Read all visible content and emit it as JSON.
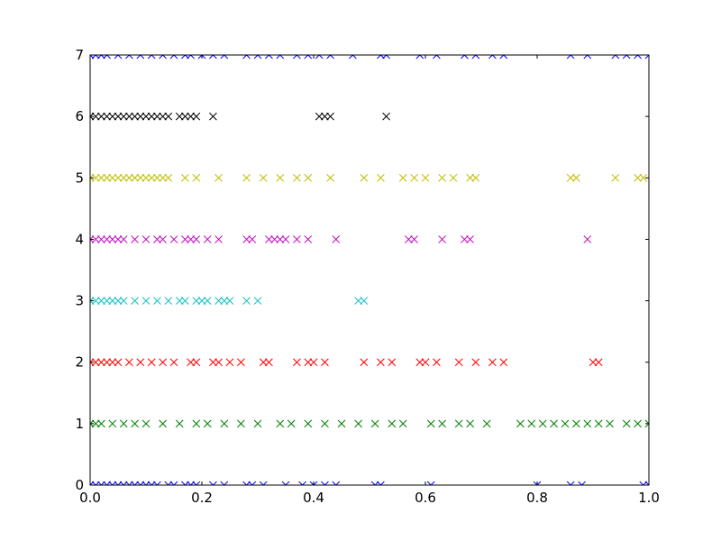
{
  "chart_data": {
    "type": "scatter",
    "xlim": [
      0,
      1
    ],
    "ylim": [
      0,
      7
    ],
    "xticks": [
      {
        "value": 0,
        "label": "0.0"
      },
      0.2,
      0.4,
      0.6,
      0.8,
      {
        "value": 1,
        "label": "1.0"
      }
    ],
    "yticks": [
      0,
      1,
      2,
      3,
      4,
      5,
      6,
      7
    ],
    "marker": "x",
    "series": [
      {
        "color": "#0000ff",
        "x": [
          0.0,
          0.01,
          0.02,
          0.03,
          0.04,
          0.05,
          0.06,
          0.07,
          0.08,
          0.09,
          0.1,
          0.11,
          0.12,
          0.14,
          0.15,
          0.17,
          0.18,
          0.19,
          0.22,
          0.24,
          0.28,
          0.29,
          0.31,
          0.35,
          0.38,
          0.4,
          0.42,
          0.44,
          0.51,
          0.52,
          0.61,
          0.8,
          0.86,
          0.88,
          0.99,
          1.0
        ],
        "values": [
          0,
          0,
          0,
          0,
          0,
          0,
          0,
          0,
          0,
          0,
          0,
          0,
          0,
          0,
          0,
          0,
          0,
          0,
          0,
          0,
          0,
          0,
          0,
          0,
          0,
          0,
          0,
          0,
          0,
          0,
          0,
          0,
          0,
          0,
          0,
          0
        ]
      },
      {
        "color": "#008000",
        "x": [
          0.0,
          0.01,
          0.02,
          0.04,
          0.06,
          0.08,
          0.1,
          0.13,
          0.16,
          0.19,
          0.21,
          0.24,
          0.27,
          0.3,
          0.34,
          0.36,
          0.39,
          0.42,
          0.45,
          0.48,
          0.51,
          0.54,
          0.56,
          0.61,
          0.63,
          0.66,
          0.68,
          0.71,
          0.77,
          0.79,
          0.81,
          0.83,
          0.85,
          0.87,
          0.89,
          0.91,
          0.93,
          0.96,
          0.98,
          1.0
        ],
        "values": [
          1,
          1,
          1,
          1,
          1,
          1,
          1,
          1,
          1,
          1,
          1,
          1,
          1,
          1,
          1,
          1,
          1,
          1,
          1,
          1,
          1,
          1,
          1,
          1,
          1,
          1,
          1,
          1,
          1,
          1,
          1,
          1,
          1,
          1,
          1,
          1,
          1,
          1,
          1,
          1
        ]
      },
      {
        "color": "#ff0000",
        "x": [
          0.0,
          0.01,
          0.02,
          0.03,
          0.04,
          0.05,
          0.07,
          0.09,
          0.11,
          0.13,
          0.15,
          0.18,
          0.19,
          0.22,
          0.23,
          0.25,
          0.27,
          0.31,
          0.32,
          0.37,
          0.39,
          0.4,
          0.42,
          0.49,
          0.52,
          0.54,
          0.59,
          0.6,
          0.62,
          0.66,
          0.69,
          0.72,
          0.74,
          0.9,
          0.91
        ],
        "values": [
          2,
          2,
          2,
          2,
          2,
          2,
          2,
          2,
          2,
          2,
          2,
          2,
          2,
          2,
          2,
          2,
          2,
          2,
          2,
          2,
          2,
          2,
          2,
          2,
          2,
          2,
          2,
          2,
          2,
          2,
          2,
          2,
          2,
          2,
          2
        ]
      },
      {
        "color": "#00bfbf",
        "x": [
          0.0,
          0.01,
          0.02,
          0.03,
          0.04,
          0.05,
          0.06,
          0.08,
          0.1,
          0.12,
          0.14,
          0.16,
          0.17,
          0.19,
          0.2,
          0.21,
          0.23,
          0.24,
          0.25,
          0.28,
          0.3,
          0.48,
          0.49
        ],
        "values": [
          3,
          3,
          3,
          3,
          3,
          3,
          3,
          3,
          3,
          3,
          3,
          3,
          3,
          3,
          3,
          3,
          3,
          3,
          3,
          3,
          3,
          3,
          3
        ]
      },
      {
        "color": "#bf00bf",
        "x": [
          0.0,
          0.01,
          0.02,
          0.03,
          0.04,
          0.05,
          0.06,
          0.08,
          0.1,
          0.12,
          0.13,
          0.15,
          0.17,
          0.18,
          0.19,
          0.21,
          0.23,
          0.28,
          0.29,
          0.32,
          0.33,
          0.34,
          0.35,
          0.37,
          0.39,
          0.44,
          0.57,
          0.58,
          0.63,
          0.67,
          0.68,
          0.89
        ],
        "values": [
          4,
          4,
          4,
          4,
          4,
          4,
          4,
          4,
          4,
          4,
          4,
          4,
          4,
          4,
          4,
          4,
          4,
          4,
          4,
          4,
          4,
          4,
          4,
          4,
          4,
          4,
          4,
          4,
          4,
          4,
          4,
          4
        ]
      },
      {
        "color": "#bfbf00",
        "x": [
          0.0,
          0.01,
          0.02,
          0.03,
          0.04,
          0.05,
          0.06,
          0.07,
          0.08,
          0.09,
          0.1,
          0.11,
          0.12,
          0.13,
          0.14,
          0.17,
          0.19,
          0.23,
          0.28,
          0.31,
          0.34,
          0.37,
          0.39,
          0.43,
          0.49,
          0.52,
          0.56,
          0.58,
          0.6,
          0.63,
          0.65,
          0.68,
          0.69,
          0.86,
          0.87,
          0.94,
          0.98,
          0.99
        ],
        "values": [
          5,
          5,
          5,
          5,
          5,
          5,
          5,
          5,
          5,
          5,
          5,
          5,
          5,
          5,
          5,
          5,
          5,
          5,
          5,
          5,
          5,
          5,
          5,
          5,
          5,
          5,
          5,
          5,
          5,
          5,
          5,
          5,
          5,
          5,
          5,
          5,
          5,
          5
        ]
      },
      {
        "color": "#000000",
        "x": [
          0.0,
          0.01,
          0.02,
          0.03,
          0.04,
          0.05,
          0.06,
          0.07,
          0.08,
          0.09,
          0.1,
          0.11,
          0.12,
          0.13,
          0.14,
          0.16,
          0.17,
          0.18,
          0.19,
          0.22,
          0.41,
          0.42,
          0.43,
          0.53
        ],
        "values": [
          6,
          6,
          6,
          6,
          6,
          6,
          6,
          6,
          6,
          6,
          6,
          6,
          6,
          6,
          6,
          6,
          6,
          6,
          6,
          6,
          6,
          6,
          6,
          6
        ]
      },
      {
        "color": "#0000ff",
        "x": [
          0.0,
          0.01,
          0.02,
          0.03,
          0.05,
          0.07,
          0.09,
          0.11,
          0.13,
          0.15,
          0.17,
          0.18,
          0.2,
          0.22,
          0.24,
          0.28,
          0.3,
          0.32,
          0.34,
          0.37,
          0.39,
          0.41,
          0.43,
          0.47,
          0.52,
          0.53,
          0.59,
          0.62,
          0.67,
          0.69,
          0.72,
          0.74,
          0.86,
          0.89,
          0.94,
          0.96,
          0.98,
          1.0
        ],
        "values": [
          7,
          7,
          7,
          7,
          7,
          7,
          7,
          7,
          7,
          7,
          7,
          7,
          7,
          7,
          7,
          7,
          7,
          7,
          7,
          7,
          7,
          7,
          7,
          7,
          7,
          7,
          7,
          7,
          7,
          7,
          7,
          7,
          7,
          7,
          7,
          7,
          7,
          7
        ]
      }
    ]
  }
}
